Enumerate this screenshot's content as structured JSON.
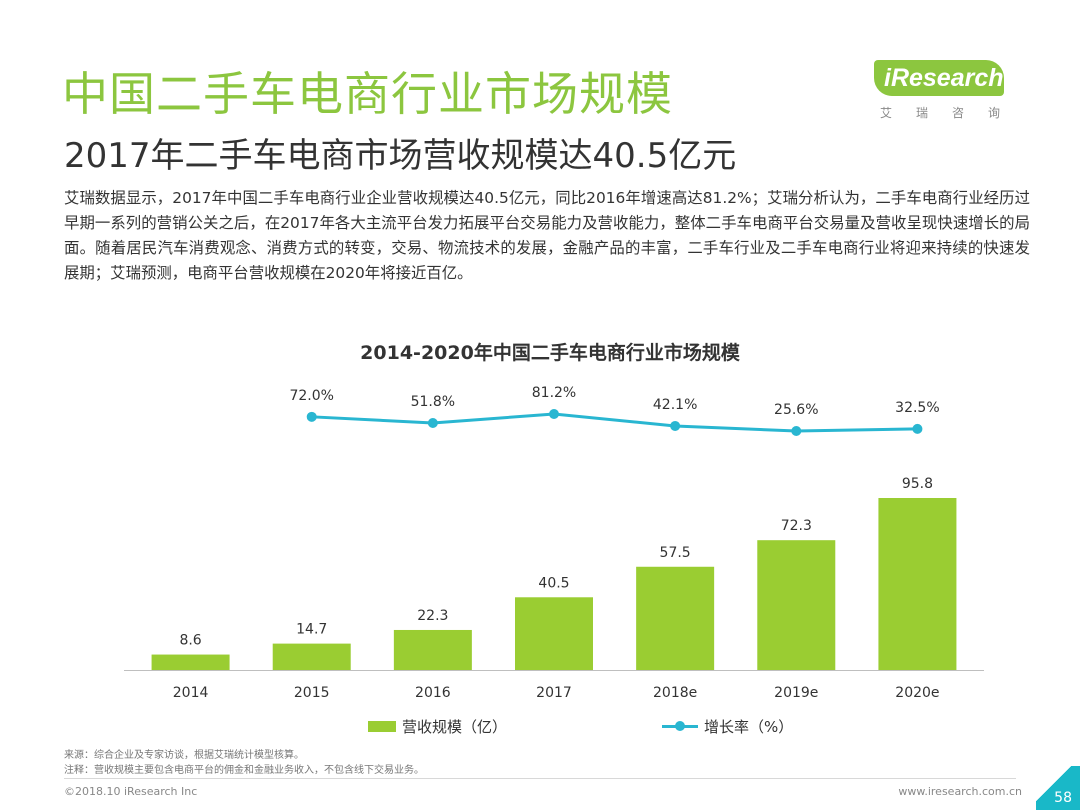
{
  "header": {
    "title": "中国二手车电商行业市场规模",
    "subtitle": "2017年二手车电商市场营收规模达40.5亿元"
  },
  "logo": {
    "brand": "iResearch",
    "tagline": "艾瑞咨询"
  },
  "body_text": "艾瑞数据显示，2017年中国二手车电商行业企业营收规模达40.5亿元，同比2016年增速高达81.2%；艾瑞分析认为，二手车电商行业经历过早期一系列的营销公关之后，在2017年各大主流平台发力拓展平台交易能力及营收能力，整体二手车电商平台交易量及营收呈现快速增长的局面。随着居民汽车消费观念、消费方式的转变，交易、物流技术的发展，金融产品的丰富，二手车行业及二手车电商行业将迎来持续的快速发展期；艾瑞预测，电商平台营收规模在2020年将接近百亿。",
  "colors": {
    "title_green": "#8cc63f",
    "bar_green": "#9acd32",
    "line_teal": "#29b6d1",
    "accent_teal": "#19b8c8"
  },
  "chart_data": {
    "type": "bar",
    "title": "2014-2020年中国二手车电商行业市场规模",
    "categories": [
      "2014",
      "2015",
      "2016",
      "2017",
      "2018e",
      "2019e",
      "2020e"
    ],
    "series": [
      {
        "name": "营收规模（亿）",
        "type": "bar",
        "values": [
          8.6,
          14.7,
          22.3,
          40.5,
          57.5,
          72.3,
          95.8
        ],
        "labels": [
          "8.6",
          "14.7",
          "22.3",
          "40.5",
          "57.5",
          "72.3",
          "95.8"
        ]
      },
      {
        "name": "增长率（%）",
        "type": "line",
        "values": [
          null,
          72.0,
          51.8,
          81.2,
          42.1,
          25.6,
          32.5
        ],
        "labels": [
          "",
          "72.0%",
          "51.8%",
          "81.2%",
          "42.1%",
          "25.6%",
          "32.5%"
        ]
      }
    ],
    "ylim": [
      0,
      100
    ],
    "grid": false,
    "legend": "bottom"
  },
  "footnotes": {
    "source": "来源：综合企业及专家访谈，根据艾瑞统计模型核算。",
    "note": "注释：营收规模主要包含电商平台的佣金和金融业务收入，不包含线下交易业务。"
  },
  "footer": {
    "copyright": "©2018.10 iResearch Inc",
    "website": "www.iresearch.com.cn",
    "page": "58"
  }
}
